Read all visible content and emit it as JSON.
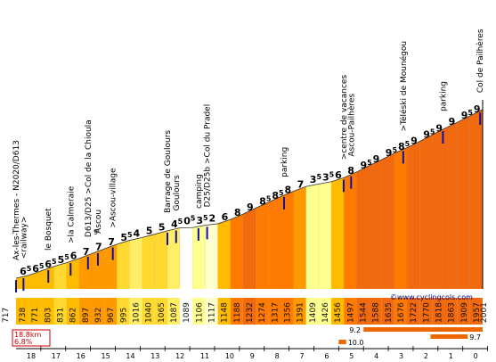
{
  "chart_data": {
    "type": "area",
    "title": "",
    "xlabel": "",
    "ylabel": "",
    "credit": "©www.cyclingcols.com",
    "summary": {
      "length": "18.8km",
      "avg_gradient": "6.8%"
    },
    "start_altitude": "717",
    "end_altitude": "2001",
    "km_axis_labels": [
      "18",
      "17",
      "16",
      "15",
      "14",
      "13",
      "12",
      "11",
      "10",
      "9",
      "8",
      "7",
      "6",
      "5",
      "4",
      "3",
      "2",
      "1",
      "0"
    ],
    "segments": [
      {
        "grade": "6",
        "sup": "5",
        "alt": "738"
      },
      {
        "grade": "6",
        "sup": "5",
        "alt": "771"
      },
      {
        "grade": "6",
        "sup": "5",
        "alt": "803"
      },
      {
        "grade": "5",
        "sup": "5",
        "alt": "831"
      },
      {
        "grade": "6",
        "sup": "",
        "alt": "862"
      },
      {
        "grade": "7",
        "sup": "",
        "alt": "897"
      },
      {
        "grade": "7",
        "sup": "",
        "alt": "932"
      },
      {
        "grade": "7",
        "sup": "",
        "alt": "967"
      },
      {
        "grade": "5",
        "sup": "5",
        "alt": "995"
      },
      {
        "grade": "4",
        "sup": "",
        "alt": "1016"
      },
      {
        "grade": "5",
        "sup": "",
        "alt": "1040"
      },
      {
        "grade": "5",
        "sup": "",
        "alt": "1065"
      },
      {
        "grade": "4",
        "sup": "5",
        "alt": "1087"
      },
      {
        "grade": "0",
        "sup": "5",
        "alt": "1089"
      },
      {
        "grade": "3",
        "sup": "5",
        "alt": "1106"
      },
      {
        "grade": "2",
        "sup": "",
        "alt": "1117"
      },
      {
        "grade": "6",
        "sup": "",
        "alt": "1148"
      },
      {
        "grade": "8",
        "sup": "",
        "alt": "1188"
      },
      {
        "grade": "9",
        "sup": "",
        "alt": "1232"
      },
      {
        "grade": "8",
        "sup": "5",
        "alt": "1274"
      },
      {
        "grade": "8",
        "sup": "5",
        "alt": "1317"
      },
      {
        "grade": "8",
        "sup": "",
        "alt": "1356"
      },
      {
        "grade": "7",
        "sup": "",
        "alt": "1391"
      },
      {
        "grade": "3",
        "sup": "5",
        "alt": "1409"
      },
      {
        "grade": "3",
        "sup": "5",
        "alt": "1426"
      },
      {
        "grade": "6",
        "sup": "",
        "alt": "1456"
      },
      {
        "grade": "8",
        "sup": "",
        "alt": "1497"
      },
      {
        "grade": "9",
        "sup": "5",
        "alt": "1544"
      },
      {
        "grade": "9",
        "sup": "",
        "alt": "1588"
      },
      {
        "grade": "9",
        "sup": "5",
        "alt": "1635"
      },
      {
        "grade": "8",
        "sup": "5",
        "alt": "1676"
      },
      {
        "grade": "9",
        "sup": "",
        "alt": "1722"
      },
      {
        "grade": "9",
        "sup": "5",
        "alt": "1770"
      },
      {
        "grade": "9",
        "sup": "",
        "alt": "1818"
      },
      {
        "grade": "9",
        "sup": "",
        "alt": "1863"
      },
      {
        "grade": "9",
        "sup": "5",
        "alt": "1909"
      },
      {
        "grade": "9",
        "sup": "",
        "alt": "1957"
      }
    ],
    "waypoints": [
      {
        "label": "Ax-les-Thermes - N2020/D613",
        "km": 0
      },
      {
        "label": "<railway>",
        "km": 0.3
      },
      {
        "label": "le Bosquet",
        "km": 1.3
      },
      {
        "label": ">la Calmeraie",
        "km": 2.2
      },
      {
        "label": "D613/D25 >Col de la Chioula",
        "km": 2.9
      },
      {
        "label": "Ascou",
        "km": 3.3
      },
      {
        "label": ">Ascou-village",
        "km": 3.9
      },
      {
        "label": "Barrage de Goulours",
        "km": 6.1
      },
      {
        "label": "Goulours",
        "km": 6.45
      },
      {
        "label": "camping",
        "km": 7.35
      },
      {
        "label": "D25/D25b >Col du Pradel",
        "km": 7.7
      },
      {
        "label": "parking",
        "km": 10.8
      },
      {
        "label": ">centre de vacances",
        "km": 13.2
      },
      {
        "label": "Ascou-Pailhères",
        "km": 13.5
      },
      {
        "label": ">Téléski de Mounégou",
        "km": 15.6
      },
      {
        "label": "parking",
        "km": 17.2
      },
      {
        "label": "Col de Pailhères",
        "km": 18.7
      }
    ],
    "steepest_sections": [
      {
        "grade": "9.2"
      },
      {
        "grade": "9.7"
      },
      {
        "grade": "10.0"
      }
    ],
    "small_annotation": "9"
  }
}
